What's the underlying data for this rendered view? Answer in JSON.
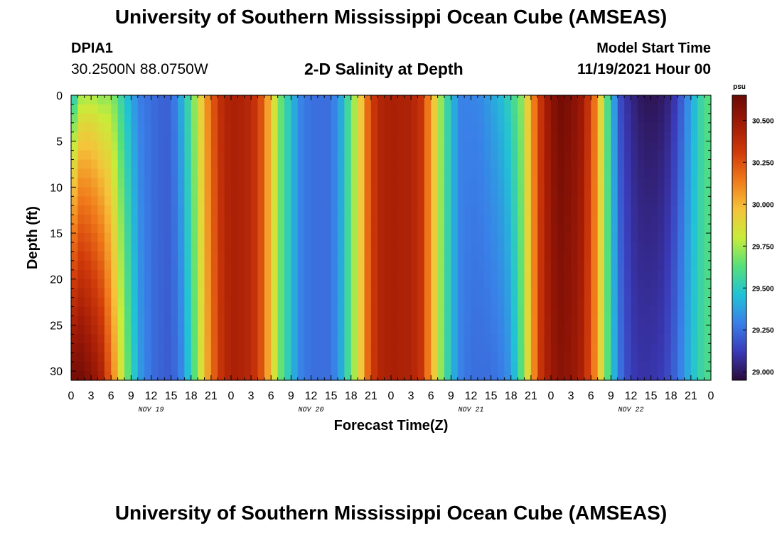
{
  "header": {
    "title": "University of Southern Mississippi Ocean Cube (AMSEAS)",
    "station": "DPIA1",
    "coords": "30.2500N  88.0750W",
    "subtitle": "2-D Salinity at Depth",
    "model_start_label": "Model Start Time",
    "model_start_value": "11/19/2021 Hour 00"
  },
  "footer": {
    "title": "University of Southern Mississippi Ocean Cube (AMSEAS)"
  },
  "chart_data": {
    "type": "heatmap",
    "title": "2-D Salinity at Depth",
    "xlabel": "Forecast Time(Z)",
    "ylabel": "Depth (ft)",
    "x_range_hours": [
      0,
      96
    ],
    "x_tick_labels": [
      "0",
      "3",
      "6",
      "9",
      "12",
      "15",
      "18",
      "21",
      "0",
      "3",
      "6",
      "9",
      "12",
      "15",
      "18",
      "21",
      "0",
      "3",
      "6",
      "9",
      "12",
      "15",
      "18",
      "21",
      "0",
      "3",
      "6",
      "9",
      "12",
      "15",
      "18",
      "21",
      "0"
    ],
    "x_date_labels": [
      {
        "label": "NOV 19",
        "hour": 12
      },
      {
        "label": "NOV 20",
        "hour": 36
      },
      {
        "label": "NOV 21",
        "hour": 60
      },
      {
        "label": "NOV 22",
        "hour": 84
      }
    ],
    "y_range_ft": [
      0,
      31
    ],
    "y_ticks": [
      0,
      5,
      10,
      15,
      20,
      25,
      30
    ],
    "y_tick_labels": [
      "0",
      "5",
      "10",
      "15",
      "20",
      "25",
      "30"
    ],
    "colorbar": {
      "unit": "psu",
      "min": 28.95,
      "max": 30.65,
      "ticks": [
        29.0,
        29.25,
        29.5,
        29.75,
        30.0,
        30.25,
        30.5
      ],
      "tick_labels": [
        "29.000",
        "29.250",
        "29.500",
        "29.750",
        "30.000",
        "30.250",
        "30.500"
      ],
      "colors": [
        "#2a0a3a",
        "#3a3ab8",
        "#3a7fe8",
        "#21c2d6",
        "#55e07a",
        "#c8ec3a",
        "#f5c33a",
        "#f07a1a",
        "#d03a0a",
        "#a01a06",
        "#6a0a06"
      ]
    },
    "salinity_profile": {
      "hours": [
        0,
        1.5,
        3,
        4.5,
        6,
        7.5,
        9,
        10.5,
        12,
        13.5,
        15,
        16.5,
        18,
        19.5,
        21,
        22.5,
        24,
        25.5,
        27,
        28.5,
        30,
        31.5,
        33,
        34.5,
        36,
        37.5,
        39,
        40.5,
        42,
        43.5,
        45,
        46.5,
        48,
        49.5,
        51,
        52.5,
        54,
        55.5,
        57,
        58.5,
        60,
        61.5,
        63,
        64.5,
        66,
        67.5,
        69,
        70.5,
        72,
        73.5,
        75,
        76.5,
        78,
        79.5,
        81,
        82.5,
        84,
        85.5,
        87,
        88.5,
        90,
        91.5,
        93,
        94.5,
        96
      ],
      "surface": [
        29.4,
        29.72,
        29.75,
        29.7,
        29.72,
        29.55,
        29.38,
        29.28,
        29.25,
        29.22,
        29.22,
        29.4,
        29.62,
        29.92,
        30.2,
        30.38,
        30.45,
        30.43,
        30.4,
        30.25,
        29.95,
        29.65,
        29.45,
        29.3,
        29.25,
        29.25,
        29.25,
        29.4,
        29.65,
        29.95,
        30.3,
        30.42,
        30.45,
        30.44,
        30.43,
        30.35,
        30.05,
        29.72,
        29.45,
        29.3,
        29.3,
        29.32,
        29.38,
        29.45,
        29.55,
        29.7,
        30.05,
        30.35,
        30.55,
        30.62,
        30.58,
        30.5,
        30.3,
        29.9,
        29.45,
        29.15,
        29.05,
        29.0,
        28.98,
        29.0,
        29.05,
        29.2,
        29.38,
        29.55,
        29.65
      ],
      "bottom": [
        30.62,
        30.62,
        30.55,
        30.45,
        30.18,
        29.85,
        29.55,
        29.35,
        29.25,
        29.22,
        29.2,
        29.3,
        29.52,
        29.85,
        30.15,
        30.35,
        30.45,
        30.43,
        30.4,
        30.25,
        29.95,
        29.65,
        29.45,
        29.3,
        29.25,
        29.25,
        29.25,
        29.4,
        29.65,
        29.95,
        30.3,
        30.42,
        30.45,
        30.44,
        30.43,
        30.35,
        30.05,
        29.72,
        29.45,
        29.3,
        29.25,
        29.25,
        29.25,
        29.28,
        29.35,
        29.62,
        30.0,
        30.35,
        30.5,
        30.55,
        30.52,
        30.45,
        30.25,
        29.9,
        29.5,
        29.25,
        29.12,
        29.1,
        29.1,
        29.12,
        29.18,
        29.3,
        29.45,
        29.55,
        29.62
      ]
    }
  }
}
